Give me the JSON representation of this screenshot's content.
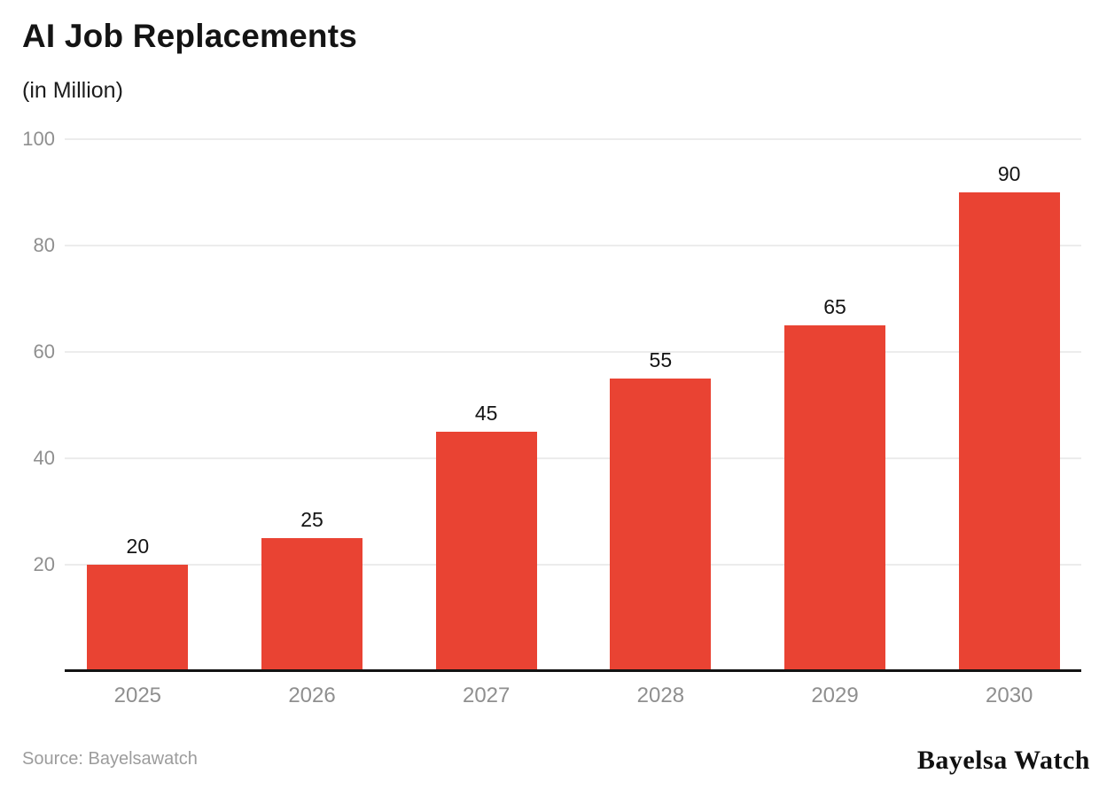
{
  "header": {
    "title": "AI Job Replacements",
    "subtitle": "(in Million)"
  },
  "footer": {
    "source": "Source: Bayelsawatch",
    "brand": "Bayelsa Watch"
  },
  "colors": {
    "bar": "#E94333",
    "gridline": "#ECECEC",
    "axis_line": "#131313",
    "tick_label": "#8F8F8F",
    "value_label": "#141414",
    "source_text": "#9C9C9C",
    "background": "#FFFFFF"
  },
  "chart_data": {
    "type": "bar",
    "title": "AI Job Replacements",
    "subtitle": "(in Million)",
    "categories": [
      "2025",
      "2026",
      "2027",
      "2028",
      "2029",
      "2030"
    ],
    "values": [
      20,
      25,
      45,
      55,
      65,
      90
    ],
    "xlabel": "",
    "ylabel": "",
    "yticks": [
      20,
      40,
      60,
      80,
      100
    ],
    "ylim": [
      0,
      100
    ],
    "grid": true,
    "legend": false,
    "value_labels": true,
    "bar_color": "#E94333",
    "source": "Source: Bayelsawatch",
    "brand": "Bayelsa Watch"
  }
}
